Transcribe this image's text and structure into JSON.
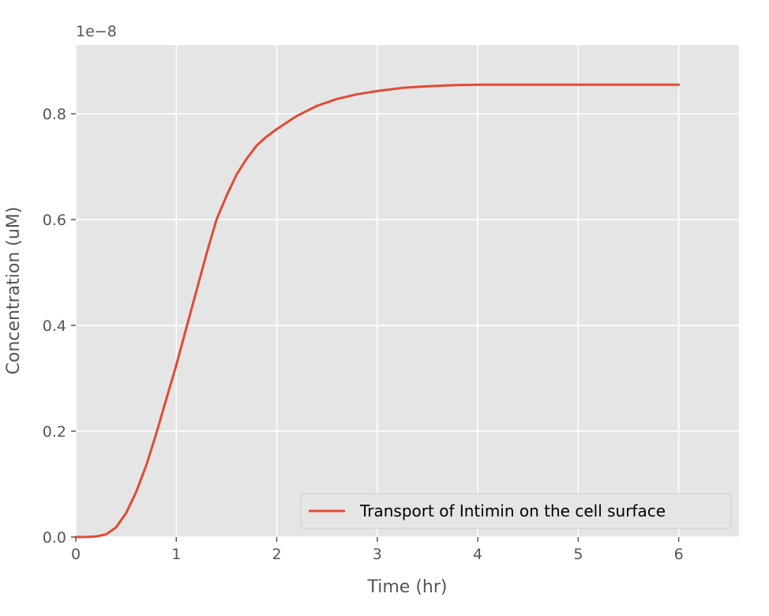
{
  "chart_data": {
    "type": "line",
    "title": "",
    "xlabel": "Time (hr)",
    "ylabel": "Concentration (uM)",
    "offset_text": "1e−8",
    "xlim": [
      0,
      6.6
    ],
    "ylim": [
      0,
      0.93
    ],
    "x_ticks": [
      0,
      1,
      2,
      3,
      4,
      5,
      6
    ],
    "x_tick_labels": [
      "0",
      "1",
      "2",
      "3",
      "4",
      "5",
      "6"
    ],
    "y_ticks": [
      0.0,
      0.2,
      0.4,
      0.6,
      0.8
    ],
    "y_tick_labels": [
      "0.0",
      "0.2",
      "0.4",
      "0.6",
      "0.8"
    ],
    "grid": true,
    "legend_position": "lower right",
    "style": {
      "background": "#e5e5e5",
      "grid_color": "#ffffff",
      "line_color": "#e24a33"
    },
    "series": [
      {
        "name": "Transport of Intimin on the cell surface",
        "x": [
          0,
          0.1,
          0.2,
          0.3,
          0.4,
          0.5,
          0.6,
          0.7,
          0.8,
          0.9,
          1.0,
          1.1,
          1.2,
          1.3,
          1.4,
          1.5,
          1.6,
          1.7,
          1.8,
          1.9,
          2.0,
          2.2,
          2.4,
          2.6,
          2.8,
          3.0,
          3.25,
          3.5,
          3.75,
          4.0,
          4.5,
          5.0,
          5.5,
          6.0
        ],
        "y": [
          0.0,
          0.0,
          0.001,
          0.005,
          0.018,
          0.045,
          0.085,
          0.135,
          0.195,
          0.26,
          0.325,
          0.395,
          0.465,
          0.535,
          0.6,
          0.645,
          0.685,
          0.715,
          0.74,
          0.757,
          0.771,
          0.796,
          0.815,
          0.828,
          0.837,
          0.843,
          0.849,
          0.852,
          0.854,
          0.855,
          0.855,
          0.855,
          0.855,
          0.855
        ]
      }
    ]
  }
}
